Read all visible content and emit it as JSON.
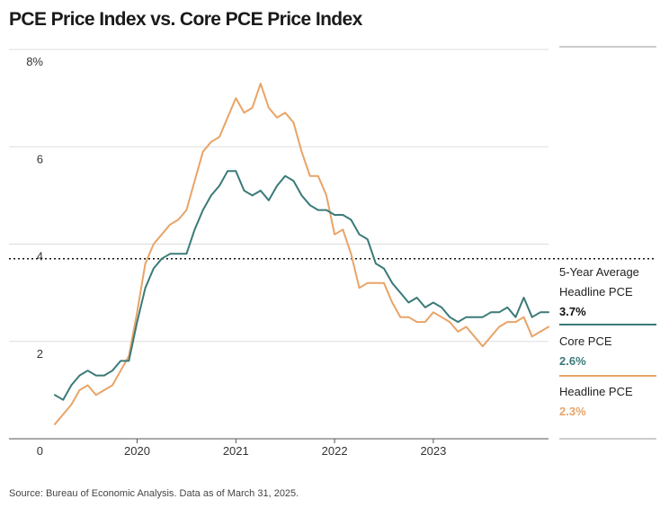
{
  "title": "PCE Price Index vs. Core PCE Price Index",
  "source": "Source: Bureau of Economic Analysis. Data as of March 31, 2025.",
  "colors": {
    "core": "#3a7a78",
    "headline": "#e8a467",
    "average": "#111111"
  },
  "legend": {
    "average": {
      "line1": "5-Year Average",
      "line2": "Headline PCE",
      "value": "3.7%"
    },
    "core": {
      "label": "Core PCE",
      "value": "2.6%"
    },
    "headline": {
      "label": "Headline PCE",
      "value": "2.3%"
    }
  },
  "chart_data": {
    "type": "line",
    "title": "PCE Price Index vs. Core PCE Price Index",
    "xlabel": "",
    "ylabel": "",
    "ylim": [
      0,
      8
    ],
    "xlim": [
      "2019-03",
      "2024-03"
    ],
    "y_ticks": [
      "8%",
      "6",
      "4",
      "2",
      "0"
    ],
    "y_tick_values": [
      8,
      6,
      4,
      2,
      0
    ],
    "x_ticks": [
      "2020",
      "2021",
      "2022",
      "2023"
    ],
    "x_tick_values": [
      "2020-01",
      "2021-01",
      "2022-01",
      "2023-01"
    ],
    "grid": true,
    "legend_position": "right",
    "reference_line": {
      "name": "5-Year Average Headline PCE",
      "value": 3.7
    },
    "x": [
      "2019-03",
      "2019-04",
      "2019-05",
      "2019-06",
      "2019-07",
      "2019-08",
      "2019-09",
      "2019-10",
      "2019-11",
      "2019-12",
      "2020-01",
      "2020-02",
      "2020-03",
      "2020-04",
      "2020-05",
      "2020-06",
      "2020-07",
      "2020-08",
      "2020-09",
      "2020-10",
      "2020-11",
      "2020-12",
      "2021-01",
      "2021-02",
      "2021-03",
      "2021-04",
      "2021-05",
      "2021-06",
      "2021-07",
      "2021-08",
      "2021-09",
      "2021-10",
      "2021-11",
      "2021-12",
      "2022-01",
      "2022-02",
      "2022-03",
      "2022-04",
      "2022-05",
      "2022-06",
      "2022-07",
      "2022-08",
      "2022-09",
      "2022-10",
      "2022-11",
      "2022-12",
      "2023-01",
      "2023-02",
      "2023-03",
      "2023-04",
      "2023-05",
      "2023-06",
      "2023-07",
      "2023-08",
      "2023-09",
      "2023-10",
      "2023-11",
      "2023-12",
      "2024-01",
      "2024-02",
      "2024-03"
    ],
    "series": [
      {
        "name": "Core PCE",
        "values": [
          0.9,
          0.8,
          1.1,
          1.3,
          1.4,
          1.3,
          1.3,
          1.4,
          1.6,
          1.6,
          2.4,
          3.1,
          3.5,
          3.7,
          3.8,
          3.8,
          3.8,
          4.3,
          4.7,
          5.0,
          5.2,
          5.5,
          5.5,
          5.1,
          5.0,
          5.1,
          4.9,
          5.2,
          5.4,
          5.3,
          5.0,
          4.8,
          4.7,
          4.7,
          4.6,
          4.6,
          4.5,
          4.2,
          4.1,
          3.6,
          3.5,
          3.2,
          3.0,
          2.8,
          2.9,
          2.7,
          2.8,
          2.7,
          2.5,
          2.4,
          2.5,
          2.5,
          2.5,
          2.6,
          2.6,
          2.7,
          2.5,
          2.9,
          2.5,
          2.6,
          2.6
        ]
      },
      {
        "name": "Headline PCE",
        "values": [
          0.3,
          0.5,
          0.7,
          1.0,
          1.1,
          0.9,
          1.0,
          1.1,
          1.4,
          1.7,
          2.6,
          3.6,
          4.0,
          4.2,
          4.4,
          4.5,
          4.7,
          5.3,
          5.9,
          6.1,
          6.2,
          6.6,
          7.0,
          6.7,
          6.8,
          7.3,
          6.8,
          6.6,
          6.7,
          6.5,
          5.9,
          5.4,
          5.4,
          5.0,
          4.2,
          4.3,
          3.8,
          3.1,
          3.2,
          3.2,
          3.2,
          2.8,
          2.5,
          2.5,
          2.4,
          2.4,
          2.6,
          2.5,
          2.4,
          2.2,
          2.3,
          2.1,
          1.9,
          2.1,
          2.3,
          2.4,
          2.4,
          2.5,
          2.1,
          2.2,
          2.3
        ]
      }
    ]
  }
}
